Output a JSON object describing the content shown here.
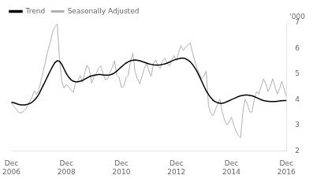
{
  "chart_data": {
    "type": "line",
    "ylabel": "'000",
    "categories": [
      "Dec\n2006",
      null,
      null,
      null,
      null,
      null,
      null,
      null,
      null,
      null,
      null,
      null,
      null,
      null,
      null,
      null,
      null,
      null,
      null,
      null,
      null,
      null,
      null,
      null,
      "Dec\n2008",
      null,
      null,
      null,
      null,
      null,
      null,
      null,
      null,
      null,
      null,
      null,
      null,
      null,
      null,
      null,
      null,
      null,
      null,
      null,
      null,
      null,
      null,
      null,
      "Dec\n2010",
      null,
      null,
      null,
      null,
      null,
      null,
      null,
      null,
      null,
      null,
      null,
      null,
      null,
      null,
      null,
      null,
      null,
      null,
      null,
      null,
      null,
      null,
      null,
      "Dec\n2012",
      null,
      null,
      null,
      null,
      null,
      null,
      null,
      null,
      null,
      null,
      null,
      null,
      null,
      null,
      null,
      null,
      null,
      null,
      null,
      null,
      null,
      null,
      null,
      "Dec\n2014",
      null,
      null,
      null,
      null,
      null,
      null,
      null,
      null,
      null,
      null,
      null,
      null,
      null,
      null,
      null,
      null,
      null,
      null,
      null,
      null,
      null,
      null,
      null,
      "Dec\n2016"
    ],
    "series": [
      {
        "name": "Trend",
        "color": "#000000",
        "values": [
          3.9,
          3.88,
          3.85,
          3.82,
          3.8,
          3.8,
          3.8,
          3.82,
          3.85,
          3.9,
          3.98,
          4.08,
          4.22,
          4.4,
          4.58,
          4.76,
          4.95,
          5.13,
          5.3,
          5.45,
          5.52,
          5.5,
          5.38,
          5.2,
          5.02,
          4.88,
          4.78,
          4.72,
          4.7,
          4.7,
          4.72,
          4.75,
          4.8,
          4.85,
          4.9,
          4.93,
          4.95,
          4.97,
          4.98,
          4.98,
          4.97,
          4.96,
          4.96,
          4.97,
          5.0,
          5.05,
          5.12,
          5.2,
          5.28,
          5.36,
          5.43,
          5.48,
          5.52,
          5.54,
          5.55,
          5.54,
          5.52,
          5.49,
          5.46,
          5.43,
          5.4,
          5.38,
          5.36,
          5.35,
          5.35,
          5.36,
          5.38,
          5.4,
          5.43,
          5.47,
          5.51,
          5.55,
          5.58,
          5.6,
          5.62,
          5.62,
          5.6,
          5.55,
          5.48,
          5.38,
          5.25,
          5.1,
          4.92,
          4.73,
          4.53,
          4.35,
          4.2,
          4.08,
          3.98,
          3.92,
          3.88,
          3.86,
          3.86,
          3.88,
          3.92,
          3.96,
          4.0,
          4.04,
          4.08,
          4.12,
          4.15,
          4.17,
          4.18,
          4.18,
          4.17,
          4.15,
          4.12,
          4.08,
          4.04,
          4.0,
          3.97,
          3.95,
          3.94,
          3.93,
          3.93,
          3.93,
          3.94,
          3.95,
          3.96,
          3.97,
          3.97
        ]
      },
      {
        "name": "Seasonally Adjusted",
        "color": "#b0b0b0",
        "values": [
          3.9,
          3.75,
          3.65,
          3.52,
          3.48,
          3.52,
          3.62,
          3.75,
          3.92,
          4.1,
          4.35,
          4.2,
          4.4,
          4.75,
          5.15,
          5.55,
          5.95,
          6.25,
          6.65,
          6.85,
          6.95,
          5.6,
          4.7,
          4.45,
          4.6,
          4.5,
          4.38,
          4.28,
          4.65,
          4.72,
          4.95,
          4.68,
          5.05,
          5.35,
          5.18,
          4.65,
          4.88,
          5.02,
          5.22,
          5.32,
          5.02,
          4.78,
          4.82,
          5.05,
          5.25,
          5.52,
          4.95,
          4.88,
          4.48,
          4.52,
          4.85,
          4.95,
          5.52,
          5.82,
          5.08,
          4.82,
          4.62,
          4.92,
          5.22,
          5.42,
          5.12,
          4.92,
          5.42,
          5.55,
          5.32,
          5.22,
          5.52,
          5.62,
          5.42,
          5.32,
          5.55,
          5.72,
          5.52,
          5.85,
          6.12,
          5.92,
          6.05,
          6.12,
          6.22,
          5.85,
          5.52,
          5.22,
          5.02,
          4.82,
          4.92,
          5.12,
          3.78,
          3.48,
          3.38,
          3.62,
          3.82,
          4.02,
          3.52,
          3.22,
          3.02,
          3.12,
          3.32,
          3.02,
          2.78,
          2.6,
          2.52,
          3.52,
          4.02,
          3.82,
          3.52,
          3.52,
          4.02,
          4.32,
          4.22,
          4.52,
          4.82,
          4.62,
          4.32,
          4.52,
          4.82,
          4.52,
          4.22,
          4.42,
          4.72,
          4.42,
          4.12
        ]
      }
    ],
    "ylim": [
      2,
      7
    ],
    "yticks": [
      2,
      3,
      4,
      5,
      6,
      7
    ],
    "legend": "upper left",
    "grid": false
  }
}
